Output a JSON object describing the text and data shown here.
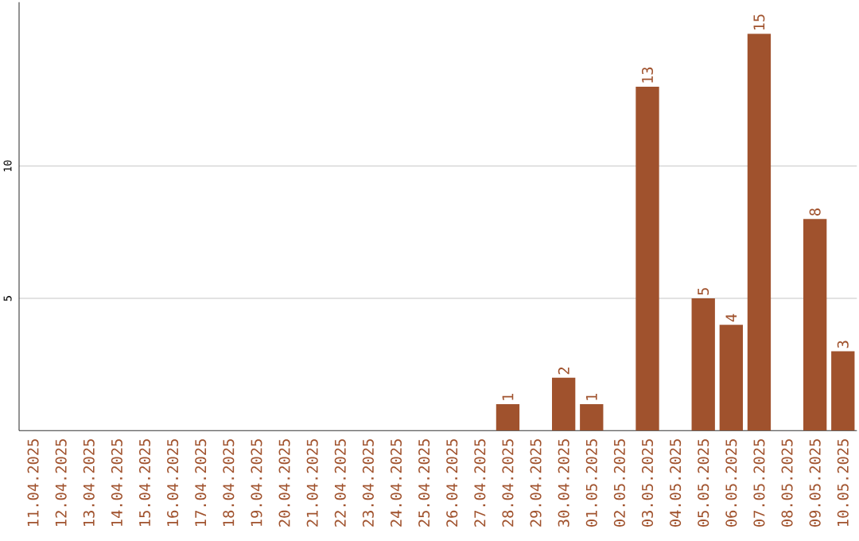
{
  "chart_data": {
    "type": "bar",
    "categories": [
      "11.04.2025",
      "12.04.2025",
      "13.04.2025",
      "14.04.2025",
      "15.04.2025",
      "16.04.2025",
      "17.04.2025",
      "18.04.2025",
      "19.04.2025",
      "20.04.2025",
      "21.04.2025",
      "22.04.2025",
      "23.04.2025",
      "24.04.2025",
      "25.04.2025",
      "26.04.2025",
      "27.04.2025",
      "28.04.2025",
      "29.04.2025",
      "30.04.2025",
      "01.05.2025",
      "02.05.2025",
      "03.05.2025",
      "04.05.2025",
      "05.05.2025",
      "06.05.2025",
      "07.05.2025",
      "08.05.2025",
      "09.05.2025",
      "10.05.2025"
    ],
    "values": [
      0,
      0,
      0,
      0,
      0,
      0,
      0,
      0,
      0,
      0,
      0,
      0,
      0,
      0,
      0,
      0,
      0,
      1,
      0,
      2,
      1,
      0,
      13,
      0,
      5,
      4,
      15,
      0,
      8,
      3
    ],
    "value_labels": [
      null,
      null,
      null,
      null,
      null,
      null,
      null,
      null,
      null,
      null,
      null,
      null,
      null,
      null,
      null,
      null,
      null,
      "1",
      null,
      "2",
      "1",
      null,
      "13",
      null,
      "5",
      "4",
      "15",
      null,
      "8",
      "3"
    ],
    "color": "#a0522d",
    "ylim": [
      0,
      16.2
    ],
    "yticks": [
      5,
      10
    ],
    "grid": "y"
  }
}
